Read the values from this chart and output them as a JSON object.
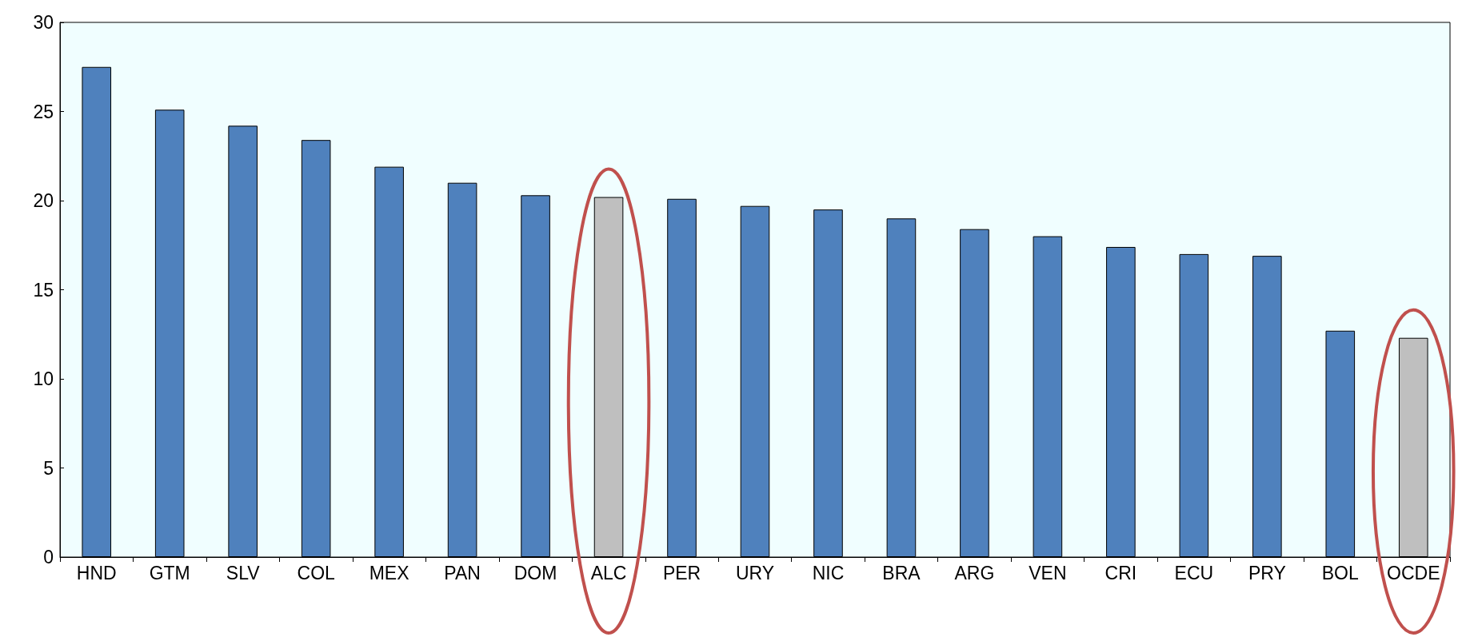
{
  "chart_data": {
    "type": "bar",
    "categories": [
      "HND",
      "GTM",
      "SLV",
      "COL",
      "MEX",
      "PAN",
      "DOM",
      "ALC",
      "PER",
      "URY",
      "NIC",
      "BRA",
      "ARG",
      "VEN",
      "CRI",
      "ECU",
      "PRY",
      "BOL",
      "OCDE"
    ],
    "values": [
      27.5,
      25.1,
      24.2,
      23.4,
      21.9,
      21.0,
      20.3,
      20.2,
      20.1,
      19.7,
      19.5,
      19.0,
      18.4,
      18.0,
      17.4,
      17.0,
      16.9,
      12.7,
      12.3
    ],
    "colors": [
      "#4f81bd",
      "#4f81bd",
      "#4f81bd",
      "#4f81bd",
      "#4f81bd",
      "#4f81bd",
      "#4f81bd",
      "#bfbfbf",
      "#4f81bd",
      "#4f81bd",
      "#4f81bd",
      "#4f81bd",
      "#4f81bd",
      "#4f81bd",
      "#4f81bd",
      "#4f81bd",
      "#4f81bd",
      "#4f81bd",
      "#bfbfbf"
    ],
    "ylim": [
      0,
      30
    ],
    "yticks": [
      0,
      5,
      10,
      15,
      20,
      25,
      30
    ],
    "grid": false
  }
}
